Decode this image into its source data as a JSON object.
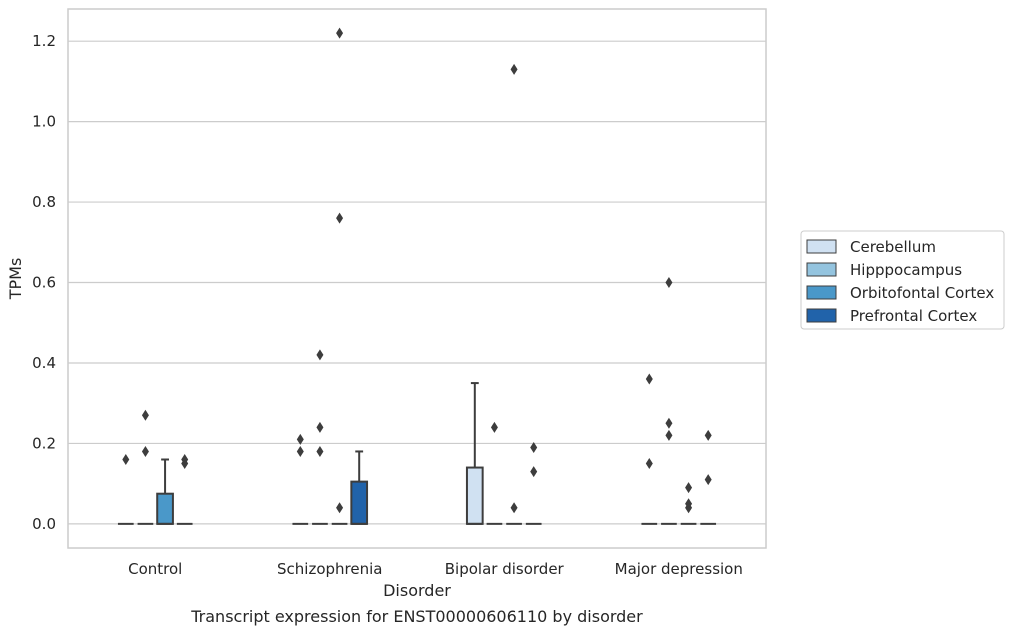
{
  "chart_data": {
    "type": "box",
    "caption": "Transcript expression for ENST00000606110 by disorder",
    "xlabel": "Disorder",
    "ylabel": "TPMs",
    "ylim": [
      -0.06,
      1.28
    ],
    "yticks": [
      0.0,
      0.2,
      0.4,
      0.6,
      0.8,
      1.0,
      1.2
    ],
    "ytick_labels": [
      "0.0",
      "0.2",
      "0.4",
      "0.6",
      "0.8",
      "1.0",
      "1.2"
    ],
    "grid": "horizontal",
    "legend_position": "right",
    "categories": [
      "Control",
      "Schizophrenia",
      "Bipolar disorder",
      "Major depression"
    ],
    "series": [
      {
        "name": "Cerebellum",
        "color": "#d0e1f2",
        "boxes": [
          {
            "q1": 0,
            "median": 0,
            "q3": 0,
            "whisker_low": 0,
            "whisker_high": 0,
            "outliers": [
              0.16
            ]
          },
          {
            "q1": 0,
            "median": 0,
            "q3": 0,
            "whisker_low": 0,
            "whisker_high": 0,
            "outliers": [
              0.18,
              0.21
            ]
          },
          {
            "q1": 0,
            "median": 0,
            "q3": 0.14,
            "whisker_low": 0,
            "whisker_high": 0.35,
            "outliers": []
          },
          {
            "q1": 0,
            "median": 0,
            "q3": 0,
            "whisker_low": 0,
            "whisker_high": 0,
            "outliers": [
              0.15,
              0.36
            ]
          }
        ]
      },
      {
        "name": "Hipppocampus",
        "color": "#94c4df",
        "boxes": [
          {
            "q1": 0,
            "median": 0,
            "q3": 0,
            "whisker_low": 0,
            "whisker_high": 0,
            "outliers": [
              0.18,
              0.27
            ]
          },
          {
            "q1": 0,
            "median": 0,
            "q3": 0,
            "whisker_low": 0,
            "whisker_high": 0,
            "outliers": [
              0.18,
              0.24,
              0.42
            ]
          },
          {
            "q1": 0,
            "median": 0,
            "q3": 0,
            "whisker_low": 0,
            "whisker_high": 0,
            "outliers": [
              0.24
            ]
          },
          {
            "q1": 0,
            "median": 0,
            "q3": 0,
            "whisker_low": 0,
            "whisker_high": 0,
            "outliers": [
              0.22,
              0.25,
              0.6
            ]
          }
        ]
      },
      {
        "name": "Orbitofontal Cortex",
        "color": "#4a98c9",
        "boxes": [
          {
            "q1": 0,
            "median": 0,
            "q3": 0.075,
            "whisker_low": 0,
            "whisker_high": 0.16,
            "outliers": []
          },
          {
            "q1": 0,
            "median": 0,
            "q3": 0,
            "whisker_low": 0,
            "whisker_high": 0,
            "outliers": [
              0.04,
              0.76,
              1.22
            ]
          },
          {
            "q1": 0,
            "median": 0,
            "q3": 0,
            "whisker_low": 0,
            "whisker_high": 0,
            "outliers": [
              0.04,
              1.13
            ]
          },
          {
            "q1": 0,
            "median": 0,
            "q3": 0,
            "whisker_low": 0,
            "whisker_high": 0,
            "outliers": [
              0.04,
              0.05,
              0.09
            ]
          }
        ]
      },
      {
        "name": "Prefrontal Cortex",
        "color": "#2163aa",
        "boxes": [
          {
            "q1": 0,
            "median": 0,
            "q3": 0,
            "whisker_low": 0,
            "whisker_high": 0,
            "outliers": [
              0.15,
              0.16
            ]
          },
          {
            "q1": 0,
            "median": 0,
            "q3": 0.105,
            "whisker_low": 0,
            "whisker_high": 0.18,
            "outliers": []
          },
          {
            "q1": 0,
            "median": 0,
            "q3": 0,
            "whisker_low": 0,
            "whisker_high": 0,
            "outliers": [
              0.13,
              0.19
            ]
          },
          {
            "q1": 0,
            "median": 0,
            "q3": 0,
            "whisker_low": 0,
            "whisker_high": 0,
            "outliers": [
              0.11,
              0.22
            ]
          }
        ]
      }
    ]
  }
}
